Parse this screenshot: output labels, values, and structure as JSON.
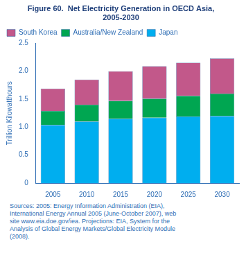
{
  "chart_data": {
    "type": "bar",
    "title": [
      "Figure 60.  Net Electricity Generation in OECD Asia,",
      "2005-2030"
    ],
    "y_label": "Trillion Kilowatthours",
    "categories": [
      "2005",
      "2010",
      "2015",
      "2020",
      "2025",
      "2030"
    ],
    "series": [
      {
        "name": "Japan",
        "color": "#00AEEF",
        "values": [
          1.04,
          1.1,
          1.15,
          1.17,
          1.19,
          1.2
        ]
      },
      {
        "name": "Australia/New Zealand",
        "color": "#00A651",
        "values": [
          0.25,
          0.3,
          0.32,
          0.34,
          0.37,
          0.4
        ]
      },
      {
        "name": "South Korea",
        "color": "#C2588A",
        "values": [
          0.4,
          0.45,
          0.53,
          0.58,
          0.59,
          0.63
        ]
      }
    ],
    "stacked": true,
    "ylim": [
      0,
      2.5
    ],
    "yticks": [
      0,
      0.5,
      {
        "value": 1.0,
        "label": "1.0"
      },
      1.5,
      {
        "value": 2.0,
        "label": "2.0"
      },
      2.5
    ],
    "grid": false,
    "legend": "upper left",
    "annotations": [
      "Sources: 2005: Energy Information Administration (EIA),",
      "International Energy Annual 2005 (June-October 2007), web",
      "site www.eia.doe.gov/iea.  Projections: EIA, System for the",
      "Analysis of Global Energy Markets/Global Electricity Module",
      "(2008)."
    ]
  }
}
